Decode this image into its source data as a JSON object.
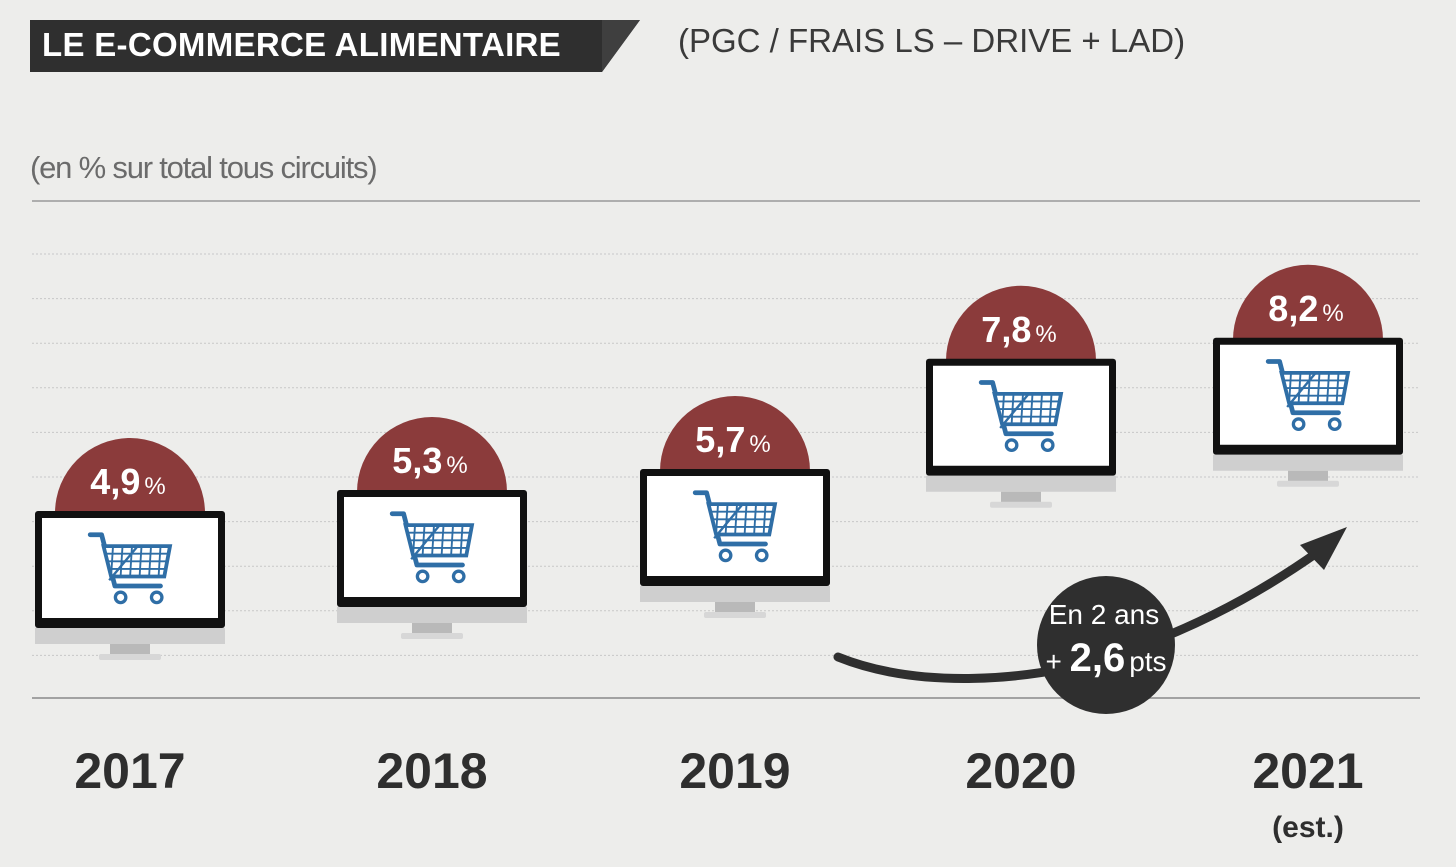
{
  "header": {
    "title": "LE E-COMMERCE ALIMENTAIRE",
    "subtitle": "(PGC / FRAIS LS – DRIVE + LAD)",
    "unit_label": "(en % sur total tous circuits)"
  },
  "colors": {
    "badge": "#2f2f2f",
    "bubble": "#8b3b3b",
    "cart": "#2f6ea6",
    "arrow": "#2f2f2f",
    "background": "#ededeb"
  },
  "chart_data": {
    "type": "bar",
    "categories": [
      "2017",
      "2018",
      "2019",
      "2020",
      "2021"
    ],
    "category_notes": [
      "",
      "",
      "",
      "",
      "(est.)"
    ],
    "values": [
      4.9,
      5.3,
      5.7,
      7.8,
      8.2
    ],
    "value_labels": [
      "4,9",
      "5,3",
      "5,7",
      "7,8",
      "8,2"
    ],
    "value_unit": "%",
    "title": "LE E-COMMERCE ALIMENTAIRE",
    "ylabel": "(en % sur total tous circuits)",
    "grid": true,
    "marker_icon": "computer-monitor-with-shopping-cart-icon",
    "annotation": {
      "line1": "En 2 ans",
      "prefix": "+",
      "number": "2,6",
      "suffix": "pts"
    }
  }
}
